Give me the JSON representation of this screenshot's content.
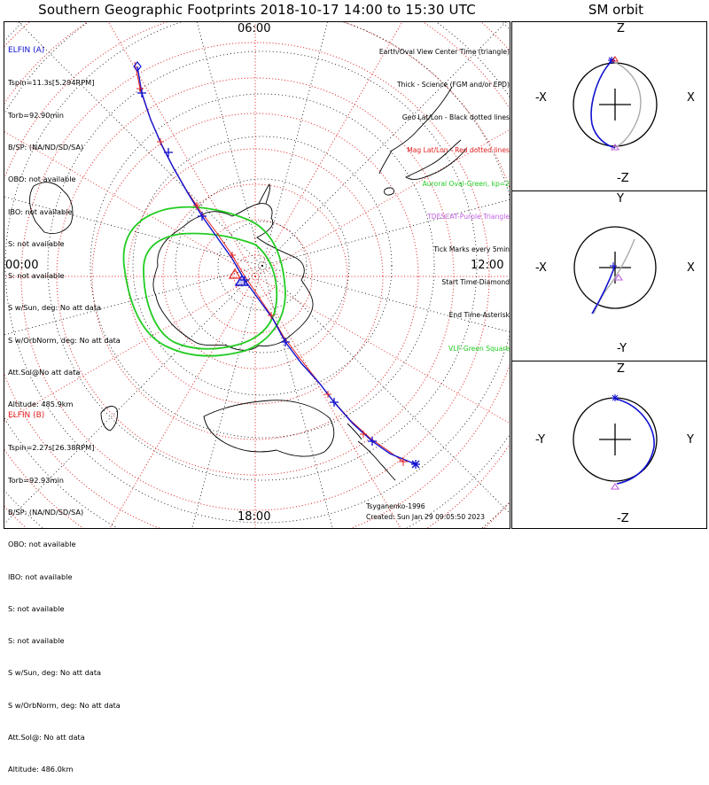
{
  "header": {
    "title": "Southern Geographic Footprints 2018-10-17 14:00 to 15:30 UTC",
    "orbit_title": "SM orbit"
  },
  "map": {
    "hour_labels": {
      "top": "06:00",
      "left": "00:00",
      "right": "12:00",
      "bottom": "18:00"
    },
    "colors": {
      "elfin_a": "#1010d0",
      "elfin_b": "#e02020",
      "auroral_oval": "#22cc22",
      "grid": "#e02020",
      "coast": "#000000"
    }
  },
  "elfin_a": {
    "header": "ELFIN (A)",
    "lines": [
      "Tspin=11.3s[5.294RPM]",
      "Torb=92.90min",
      "B/SP: (NA/ND/SD/SA)",
      "OBO: not available",
      "IBO: not available",
      "S: not available",
      "S: not available",
      "S w/Sun, deg: No att data",
      "S w/OrbNorm, deg: No att data",
      "Att.Sol@No att data",
      "Altitude: 485.9km"
    ]
  },
  "elfin_b": {
    "header": "ELFIN (B)",
    "lines": [
      "Tspin=2.27s[26.38RPM]",
      "Torb=92.93min",
      "B/SP: (NA/ND/SD/SA)",
      "OBO: not available",
      "IBO: not available",
      "S: not available",
      "S: not available",
      "S w/Sun, deg: No att data",
      "S w/OrbNorm, deg: No att data",
      "Att.Sol@: No att data",
      "Altitude: 486.0km"
    ]
  },
  "legend": [
    {
      "text": "Earth/Oval View Center Time (triangle)",
      "color": "#000000"
    },
    {
      "text": "Thick - Science (FGM and/or EPD)",
      "color": "#000000"
    },
    {
      "text": "Geo Lat/Lon - Black dotted lines",
      "color": "#000000"
    },
    {
      "text": "Mag Lat/Lon - Red dotted lines",
      "color": "#e02020"
    },
    {
      "text": "Auroral Oval-Green, kp=2",
      "color": "#22cc22"
    },
    {
      "text": "TDESCAT-Purple Triangle",
      "color": "#c060e0"
    },
    {
      "text": "Tick Marks every 5min",
      "color": "#000000"
    },
    {
      "text": "Start Time-Diamond",
      "color": "#000000"
    },
    {
      "text": "End Time-Asterisk",
      "color": "#000000"
    },
    {
      "text": "VLF-Green Square",
      "color": "#22cc22"
    }
  ],
  "credits": {
    "line1": "Tsyganenko-1996",
    "line2": "Created: Sun Jan 29 09:05:50 2023"
  },
  "sm_orbit": {
    "panels": [
      {
        "top": "Z",
        "bottom": "-Z",
        "left": "-X",
        "right": "X"
      },
      {
        "top": "Y",
        "bottom": "-Y",
        "left": "-X",
        "right": "X"
      },
      {
        "top": "Z",
        "bottom": "-Z",
        "left": "-Y",
        "right": "Y"
      }
    ]
  },
  "chart_data": [
    {
      "type": "polar map",
      "title": "Southern Geographic Footprints 2018-10-17 14:00 to 15:30 UTC",
      "mlt_labels": [
        "06:00",
        "00:00",
        "12:00",
        "18:00"
      ],
      "time_range_utc": [
        "14:00",
        "15:30"
      ],
      "auroral_oval_kp": 2,
      "tick_interval_min": 5,
      "series": [
        {
          "name": "ELFIN (A)",
          "color": "#1010d0"
        },
        {
          "name": "ELFIN (B)",
          "color": "#e02020"
        }
      ]
    },
    {
      "type": "scatter",
      "title": "SM orbit",
      "panels": [
        "Z vs X",
        "Y vs X",
        "Z vs Y"
      ]
    }
  ]
}
